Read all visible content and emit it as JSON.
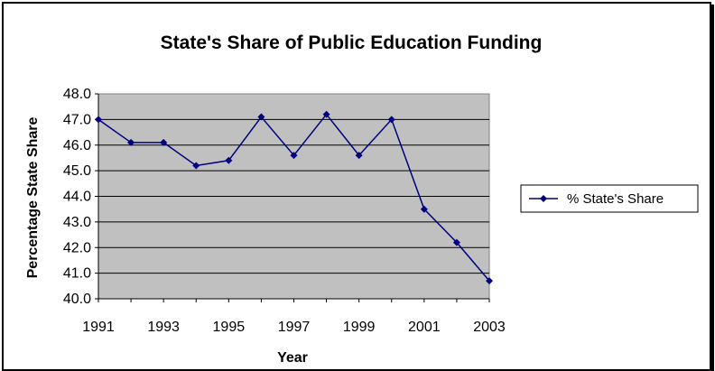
{
  "chart_data": {
    "type": "line",
    "title": "State's Share of Public Education Funding",
    "xlabel": "Year",
    "ylabel": "Percentage State Share",
    "x": [
      1991,
      1992,
      1993,
      1994,
      1995,
      1996,
      1997,
      1998,
      1999,
      2000,
      2001,
      2002,
      2003
    ],
    "x_tick_labels": [
      "1991",
      "1993",
      "1995",
      "1997",
      "1999",
      "2001",
      "2003"
    ],
    "y_tick_labels": [
      "48.0",
      "47.0",
      "46.0",
      "45.0",
      "44.0",
      "43.0",
      "42.0",
      "41.0",
      "40.0"
    ],
    "ylim": [
      40.0,
      48.0
    ],
    "grid": true,
    "legend_position": "right",
    "plot_background": "#c0c0c0",
    "series": [
      {
        "name": "% State's Share",
        "color": "#000080",
        "values": [
          47.0,
          46.1,
          46.1,
          45.2,
          45.4,
          47.1,
          45.6,
          47.2,
          45.6,
          47.0,
          43.5,
          42.2,
          40.7
        ]
      }
    ]
  }
}
